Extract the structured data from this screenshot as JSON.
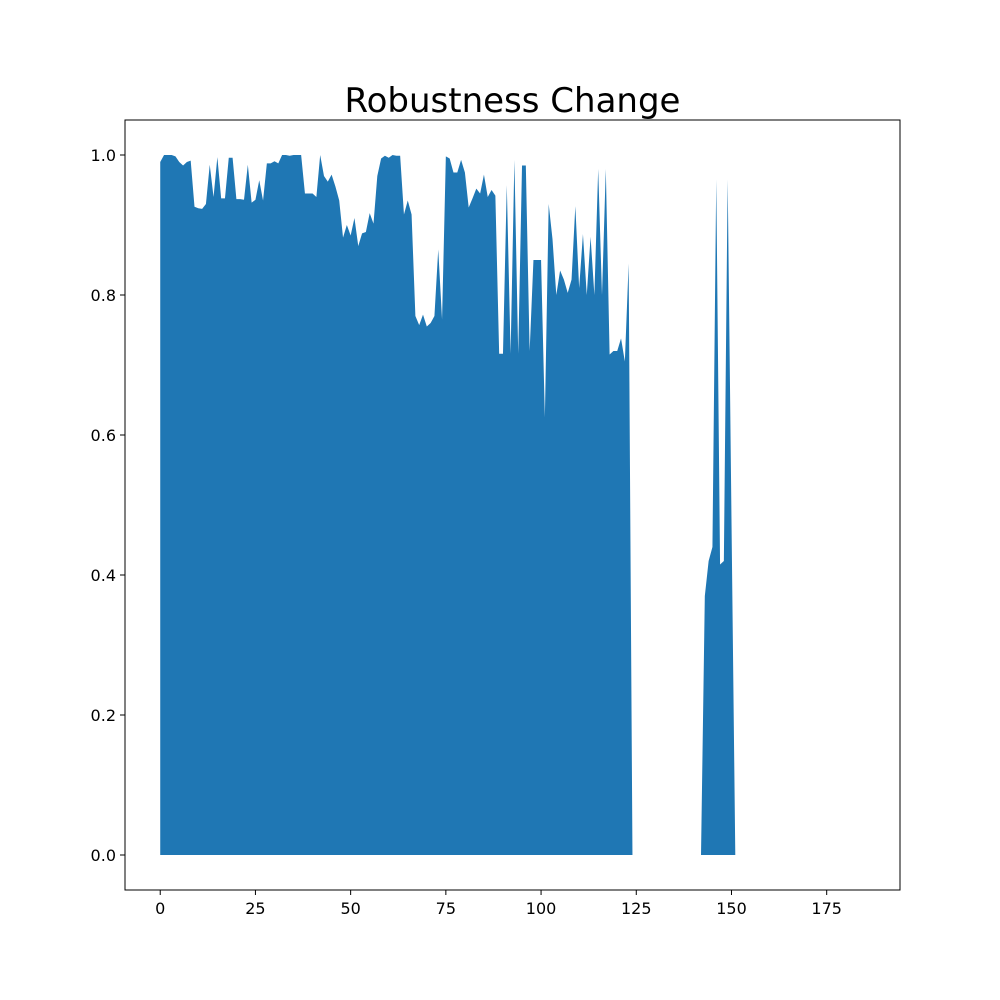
{
  "chart_data": {
    "type": "area",
    "title": "Robustness Change",
    "xlabel": "",
    "ylabel": "",
    "xlim": [
      -9.25,
      194.25
    ],
    "ylim": [
      -0.05,
      1.05
    ],
    "x_ticks": [
      0,
      25,
      50,
      75,
      100,
      125,
      150,
      175
    ],
    "y_ticks": [
      0.0,
      0.2,
      0.4,
      0.6,
      0.8,
      1.0
    ],
    "x_tick_labels": [
      "0",
      "25",
      "50",
      "75",
      "100",
      "125",
      "150",
      "175"
    ],
    "y_tick_labels": [
      "0.0",
      "0.2",
      "0.4",
      "0.6",
      "0.8",
      "1.0"
    ],
    "grid": false,
    "fill_color": "#1f77b4",
    "series": [
      {
        "points": [
          [
            0,
            0.99
          ],
          [
            1,
            1.0
          ],
          [
            3,
            1.0
          ],
          [
            4,
            0.998
          ],
          [
            5,
            0.99
          ],
          [
            6,
            0.985
          ],
          [
            7,
            0.99
          ],
          [
            8,
            0.992
          ],
          [
            9,
            0.926
          ],
          [
            10,
            0.924
          ],
          [
            11,
            0.923
          ],
          [
            12,
            0.93
          ],
          [
            13,
            0.986
          ],
          [
            14,
            0.94
          ],
          [
            15,
            0.997
          ],
          [
            16,
            0.938
          ],
          [
            17,
            0.938
          ],
          [
            18,
            0.996
          ],
          [
            19,
            0.996
          ],
          [
            20,
            0.937
          ],
          [
            21,
            0.937
          ],
          [
            22,
            0.936
          ],
          [
            23,
            0.986
          ],
          [
            24,
            0.932
          ],
          [
            25,
            0.936
          ],
          [
            26,
            0.964
          ],
          [
            27,
            0.935
          ],
          [
            28,
            0.988
          ],
          [
            29,
            0.988
          ],
          [
            30,
            0.991
          ],
          [
            31,
            0.988
          ],
          [
            32,
            1.0
          ],
          [
            33,
            1.0
          ],
          [
            34,
            0.999
          ],
          [
            35,
            1.0
          ],
          [
            36,
            1.0
          ],
          [
            37,
            1.0
          ],
          [
            38,
            0.945
          ],
          [
            39,
            0.945
          ],
          [
            40,
            0.945
          ],
          [
            41,
            0.94
          ],
          [
            42,
            1.0
          ],
          [
            43,
            0.97
          ],
          [
            44,
            0.962
          ],
          [
            45,
            0.972
          ],
          [
            46,
            0.955
          ],
          [
            47,
            0.935
          ],
          [
            48,
            0.882
          ],
          [
            49,
            0.9
          ],
          [
            50,
            0.885
          ],
          [
            51,
            0.91
          ],
          [
            52,
            0.87
          ],
          [
            53,
            0.888
          ],
          [
            54,
            0.89
          ],
          [
            55,
            0.917
          ],
          [
            56,
            0.902
          ],
          [
            57,
            0.97
          ],
          [
            58,
            0.995
          ],
          [
            59,
            0.999
          ],
          [
            60,
            0.996
          ],
          [
            61,
            1.0
          ],
          [
            62,
            0.999
          ],
          [
            63,
            0.999
          ],
          [
            64,
            0.915
          ],
          [
            65,
            0.935
          ],
          [
            66,
            0.915
          ],
          [
            67,
            0.77
          ],
          [
            68,
            0.757
          ],
          [
            69,
            0.772
          ],
          [
            70,
            0.755
          ],
          [
            71,
            0.76
          ],
          [
            72,
            0.77
          ],
          [
            73,
            0.865
          ],
          [
            74,
            0.765
          ],
          [
            75,
            0.998
          ],
          [
            76,
            0.995
          ],
          [
            77,
            0.975
          ],
          [
            78,
            0.975
          ],
          [
            79,
            0.993
          ],
          [
            80,
            0.975
          ],
          [
            81,
            0.925
          ],
          [
            82,
            0.938
          ],
          [
            83,
            0.952
          ],
          [
            84,
            0.945
          ],
          [
            85,
            0.972
          ],
          [
            86,
            0.94
          ],
          [
            87,
            0.95
          ],
          [
            88,
            0.942
          ],
          [
            89,
            0.716
          ],
          [
            90,
            0.716
          ],
          [
            91,
            0.957
          ],
          [
            92,
            0.716
          ],
          [
            93,
            0.993
          ],
          [
            94,
            0.716
          ],
          [
            95,
            0.985
          ],
          [
            96,
            0.985
          ],
          [
            97,
            0.72
          ],
          [
            98,
            0.85
          ],
          [
            99,
            0.85
          ],
          [
            100,
            0.85
          ],
          [
            101,
            0.625
          ],
          [
            102,
            0.93
          ],
          [
            103,
            0.88
          ],
          [
            104,
            0.8
          ],
          [
            105,
            0.835
          ],
          [
            106,
            0.822
          ],
          [
            107,
            0.803
          ],
          [
            108,
            0.822
          ],
          [
            109,
            0.927
          ],
          [
            110,
            0.81
          ],
          [
            111,
            0.887
          ],
          [
            112,
            0.8
          ],
          [
            113,
            0.883
          ],
          [
            114,
            0.8
          ],
          [
            115,
            0.98
          ],
          [
            116,
            0.8
          ],
          [
            117,
            0.98
          ],
          [
            118,
            0.715
          ],
          [
            119,
            0.72
          ],
          [
            120,
            0.72
          ],
          [
            121,
            0.738
          ],
          [
            122,
            0.705
          ],
          [
            123,
            0.845
          ],
          [
            124,
            0.0
          ]
        ]
      },
      {
        "points": [
          [
            142,
            0.0
          ],
          [
            143,
            0.37
          ],
          [
            144,
            0.42
          ],
          [
            145,
            0.44
          ],
          [
            146,
            0.965
          ],
          [
            147,
            0.415
          ],
          [
            148,
            0.42
          ],
          [
            149,
            0.965
          ],
          [
            150,
            0.48
          ],
          [
            151,
            0.0
          ]
        ]
      }
    ]
  }
}
